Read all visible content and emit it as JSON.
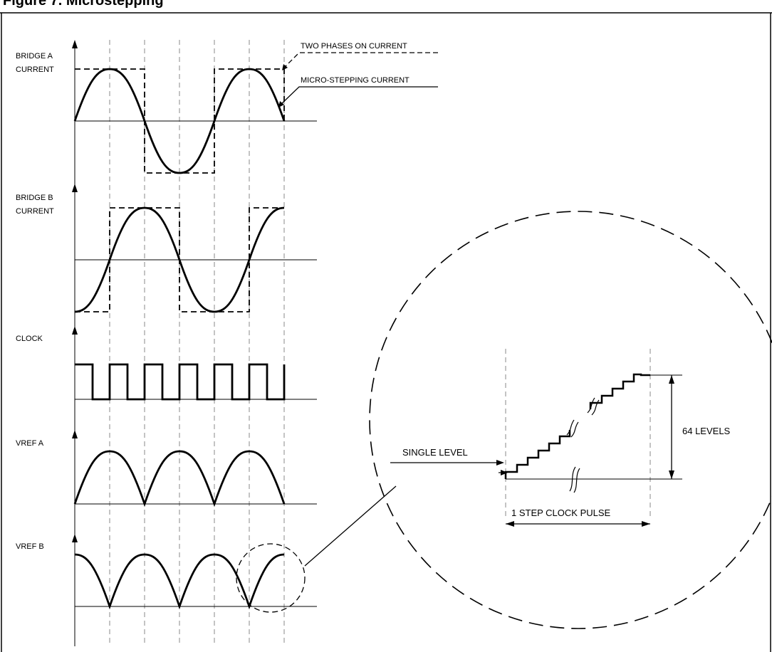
{
  "figure": {
    "title": "Figure 7. Microstepping"
  },
  "signals": {
    "bridge_a": [
      "BRIDGE A",
      "CURRENT"
    ],
    "bridge_b": [
      "BRIDGE B",
      "CURRENT"
    ],
    "clock": "CLOCK",
    "vref_a": "VREF A",
    "vref_b": "VREF B"
  },
  "legend": {
    "two_phases": "TWO PHASES ON CURRENT",
    "micro_stepping": "MICRO-STEPPING CURRENT"
  },
  "detail": {
    "single_level": "SINGLE LEVEL",
    "levels": "64 LEVELS",
    "step_clock_pulse": "1  STEP CLOCK PULSE"
  },
  "colors": {
    "line": "#000000",
    "guide": "#888888",
    "background": "#ffffff"
  }
}
